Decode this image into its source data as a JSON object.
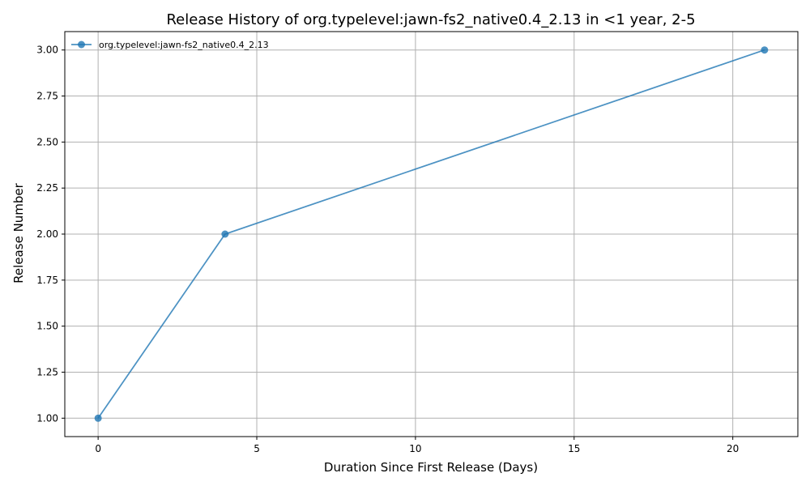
{
  "chart_data": {
    "type": "line",
    "title": "Release History of org.typelevel:jawn-fs2_native0.4_2.13 in <1 year, 2-5",
    "xlabel": "Duration Since First Release (Days)",
    "ylabel": "Release Number",
    "xlim": [
      -1.05,
      22.05
    ],
    "ylim": [
      0.9,
      3.1
    ],
    "xticks": [
      0,
      5,
      10,
      15,
      20
    ],
    "yticks": [
      1.0,
      1.25,
      1.5,
      1.75,
      2.0,
      2.25,
      2.5,
      2.75,
      3.0
    ],
    "xtick_labels": [
      "0",
      "5",
      "10",
      "15",
      "20"
    ],
    "ytick_labels": [
      "1.00",
      "1.25",
      "1.50",
      "1.75",
      "2.00",
      "2.25",
      "2.50",
      "2.75",
      "3.00"
    ],
    "grid": true,
    "legend_position": "top-left",
    "series": [
      {
        "name": "org.typelevel:jawn-fs2_native0.4_2.13",
        "color": "#1f77b4",
        "marker": "circle",
        "x": [
          0,
          4,
          21
        ],
        "y": [
          1,
          2,
          3
        ]
      }
    ]
  }
}
